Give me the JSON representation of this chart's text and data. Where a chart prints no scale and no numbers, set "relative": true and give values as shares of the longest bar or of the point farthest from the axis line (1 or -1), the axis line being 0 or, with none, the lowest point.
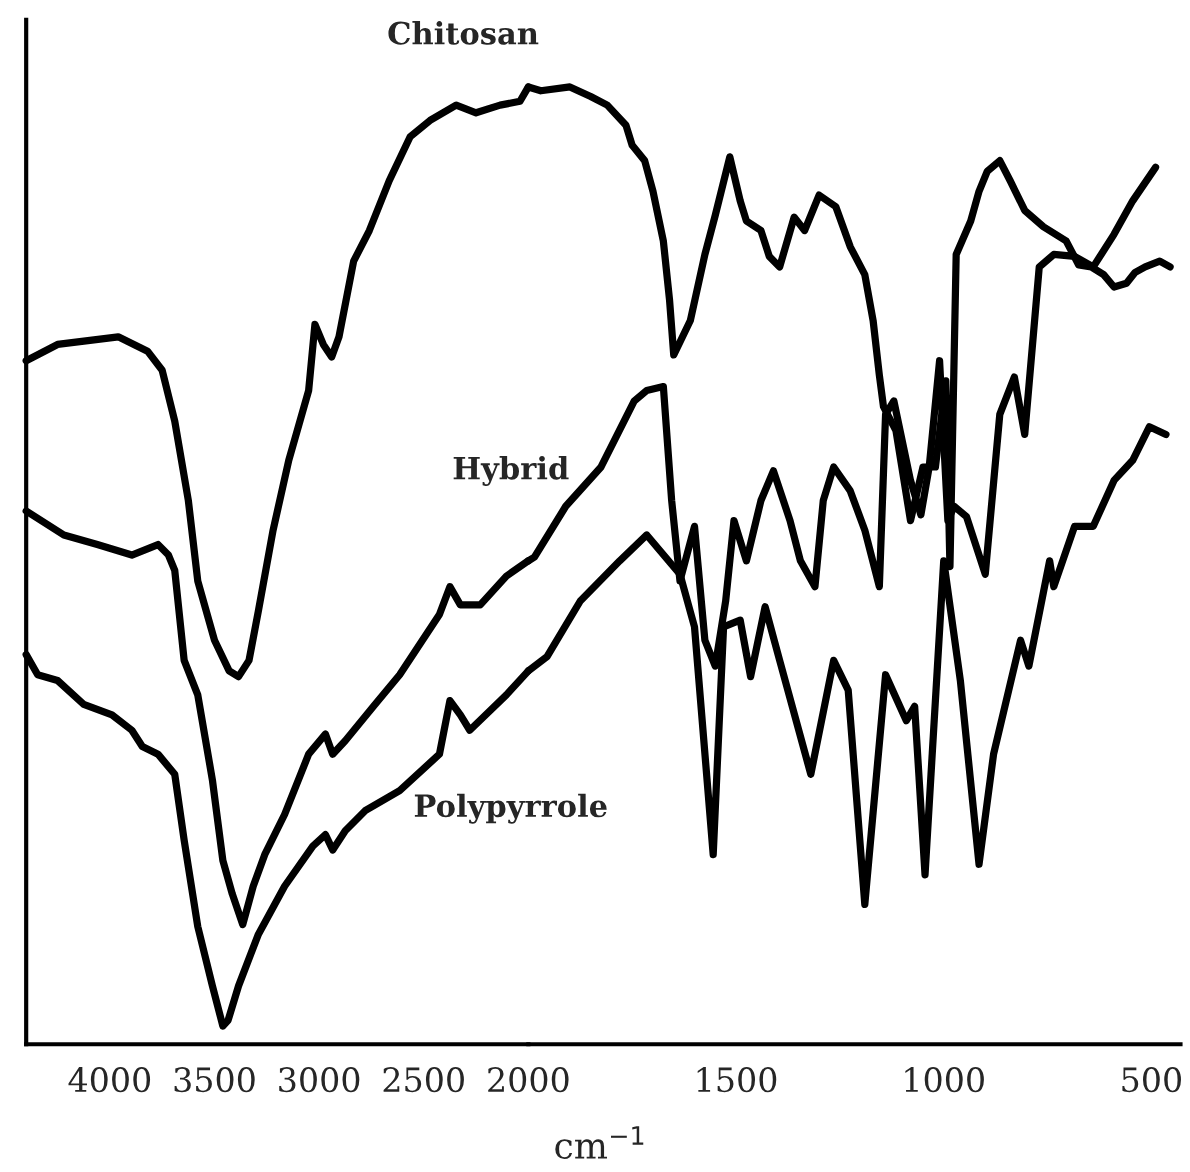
{
  "chart_data": [
    {
      "type": "line",
      "relative": true,
      "xlim": [
        4400,
        2000
      ],
      "xticks": [
        4000,
        3500,
        3000,
        2500,
        2000
      ],
      "tick_labels": "x",
      "grid": false,
      "legend": false,
      "marker": "none",
      "line_style": "solid",
      "series": [
        {
          "name": "Chitosan",
          "color": "#000000",
          "x": [
            4400,
            4250,
            3960,
            3820,
            3750,
            3690,
            3625,
            3580,
            3500,
            3430,
            3385,
            3335,
            3290,
            3220,
            3145,
            3050,
            3020,
            2980,
            2940,
            2905,
            2835,
            2760,
            2665,
            2565,
            2470,
            2345,
            2250,
            2135,
            2040,
            2000
          ],
          "values": [
            0.714,
            0.731,
            0.739,
            0.724,
            0.704,
            0.651,
            0.568,
            0.484,
            0.422,
            0.39,
            0.384,
            0.401,
            0.453,
            0.537,
            0.61,
            0.683,
            0.752,
            0.731,
            0.718,
            0.739,
            0.818,
            0.85,
            0.902,
            0.948,
            0.965,
            0.981,
            0.973,
            0.981,
            0.985,
            1.0
          ]
        },
        {
          "name": "Hybrid",
          "color": "#000000",
          "x": [
            4400,
            4220,
            4060,
            3895,
            3770,
            3720,
            3690,
            3645,
            3580,
            3510,
            3460,
            3415,
            3365,
            3315,
            3260,
            3165,
            3050,
            2970,
            2935,
            2875,
            2740,
            2615,
            2425,
            2375,
            2325,
            2230,
            2105,
            2000
          ],
          "values": [
            0.557,
            0.532,
            0.522,
            0.511,
            0.522,
            0.511,
            0.495,
            0.401,
            0.365,
            0.276,
            0.192,
            0.157,
            0.125,
            0.165,
            0.198,
            0.24,
            0.303,
            0.324,
            0.303,
            0.317,
            0.353,
            0.386,
            0.449,
            0.478,
            0.459,
            0.459,
            0.489,
            0.505
          ]
        },
        {
          "name": "Polypyrrole",
          "color": "#000000",
          "x": [
            4400,
            4345,
            4250,
            4125,
            3990,
            3895,
            3845,
            3770,
            3690,
            3645,
            3580,
            3510,
            3460,
            3435,
            3385,
            3290,
            3165,
            3030,
            2970,
            2935,
            2875,
            2780,
            2615,
            2425,
            2375,
            2325,
            2280,
            2105,
            2000
          ],
          "values": [
            0.407,
            0.386,
            0.38,
            0.355,
            0.344,
            0.328,
            0.311,
            0.303,
            0.282,
            0.213,
            0.123,
            0.061,
            0.019,
            0.025,
            0.061,
            0.115,
            0.165,
            0.207,
            0.219,
            0.203,
            0.223,
            0.244,
            0.265,
            0.303,
            0.359,
            0.344,
            0.328,
            0.365,
            0.39
          ]
        }
      ]
    },
    {
      "type": "line",
      "relative": true,
      "xlabel": "cm$^{−1}$",
      "xlim": [
        2000,
        430
      ],
      "xticks": [
        1500,
        1000,
        500
      ],
      "tick_labels": "x",
      "grid": false,
      "legend": false,
      "marker": "none",
      "line_style": "solid",
      "series": [
        {
          "color": "#000000",
          "x": [
            2000,
            1970,
            1900,
            1850,
            1810,
            1765,
            1750,
            1720,
            1700,
            1675,
            1660,
            1650,
            1610,
            1575,
            1550,
            1515,
            1490,
            1475,
            1440,
            1420,
            1395,
            1360,
            1335,
            1300,
            1260,
            1225,
            1190,
            1170,
            1155,
            1145,
            1115,
            1080,
            1050,
            1020,
            995,
            985,
            970,
            935,
            915,
            895,
            865,
            840,
            805,
            760,
            705,
            675,
            645,
            615,
            590,
            560,
            540,
            515,
            480,
            455
          ],
          "values": [
            1.0,
            0.996,
            1.0,
            0.99,
            0.981,
            0.96,
            0.939,
            0.923,
            0.891,
            0.839,
            0.777,
            0.72,
            0.756,
            0.825,
            0.866,
            0.927,
            0.881,
            0.86,
            0.85,
            0.823,
            0.812,
            0.864,
            0.85,
            0.887,
            0.875,
            0.833,
            0.804,
            0.756,
            0.699,
            0.666,
            0.641,
            0.547,
            0.603,
            0.603,
            0.693,
            0.499,
            0.825,
            0.86,
            0.891,
            0.912,
            0.923,
            0.902,
            0.871,
            0.854,
            0.839,
            0.814,
            0.812,
            0.804,
            0.791,
            0.795,
            0.806,
            0.812,
            0.818,
            0.812
          ]
        },
        {
          "color": "#000000",
          "x": [
            2000,
            1985,
            1910,
            1825,
            1745,
            1715,
            1675,
            1655,
            1635,
            1600,
            1575,
            1550,
            1525,
            1505,
            1475,
            1440,
            1410,
            1370,
            1345,
            1310,
            1290,
            1265,
            1225,
            1190,
            1155,
            1140,
            1120,
            1080,
            1055,
            1035,
            1010,
            990,
            975,
            945,
            900,
            865,
            830,
            805,
            770,
            735,
            685,
            640,
            590,
            545,
            490
          ],
          "values": [
            0.505,
            0.509,
            0.562,
            0.603,
            0.672,
            0.683,
            0.687,
            0.568,
            0.484,
            0.541,
            0.422,
            0.395,
            0.463,
            0.547,
            0.505,
            0.568,
            0.599,
            0.547,
            0.505,
            0.478,
            0.568,
            0.603,
            0.578,
            0.537,
            0.478,
            0.658,
            0.672,
            0.589,
            0.553,
            0.603,
            0.714,
            0.547,
            0.562,
            0.551,
            0.491,
            0.658,
            0.697,
            0.637,
            0.812,
            0.825,
            0.823,
            0.812,
            0.846,
            0.881,
            0.916
          ]
        },
        {
          "color": "#000000",
          "x": [
            2000,
            1955,
            1875,
            1780,
            1715,
            1635,
            1600,
            1555,
            1530,
            1490,
            1465,
            1430,
            1395,
            1320,
            1265,
            1230,
            1190,
            1140,
            1090,
            1070,
            1045,
            1000,
            960,
            915,
            880,
            815,
            795,
            745,
            735,
            685,
            640,
            590,
            545,
            505,
            465
          ],
          "values": [
            0.39,
            0.405,
            0.463,
            0.505,
            0.532,
            0.491,
            0.436,
            0.198,
            0.436,
            0.443,
            0.384,
            0.457,
            0.401,
            0.282,
            0.401,
            0.37,
            0.146,
            0.386,
            0.338,
            0.353,
            0.177,
            0.505,
            0.38,
            0.188,
            0.303,
            0.422,
            0.395,
            0.505,
            0.478,
            0.541,
            0.541,
            0.589,
            0.61,
            0.645,
            0.637
          ]
        }
      ]
    }
  ]
}
